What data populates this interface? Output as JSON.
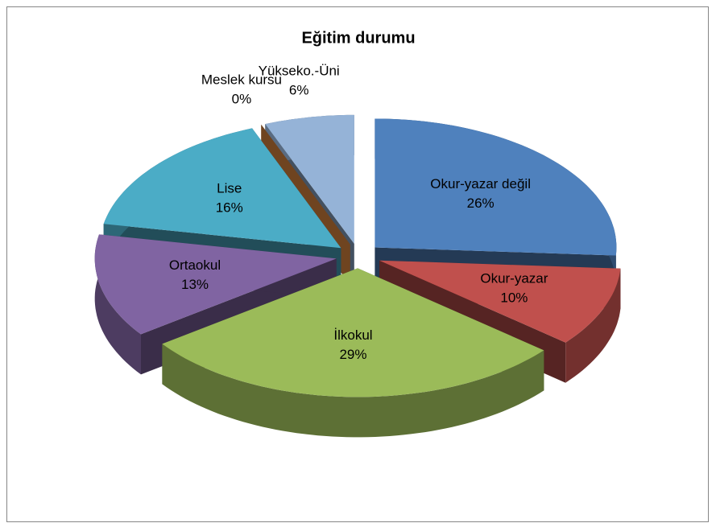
{
  "chart_data": {
    "type": "pie",
    "title": "Eğitim durumu",
    "categories": [
      "Okur-yazar değil",
      "Okur-yazar",
      "İlkokul",
      "Ortaokul",
      "Lise",
      "Meslek kursu",
      "Yükseko.-Üni"
    ],
    "values": [
      26,
      10,
      29,
      13,
      16,
      0,
      6
    ],
    "value_labels": [
      "26%",
      "10%",
      "29%",
      "13%",
      "16%",
      "0%",
      "6%"
    ],
    "colors": [
      "#4f81bd",
      "#c0504d",
      "#9bbb59",
      "#8064a2",
      "#4bacc6",
      "#f79646",
      "#95b3d7"
    ]
  }
}
